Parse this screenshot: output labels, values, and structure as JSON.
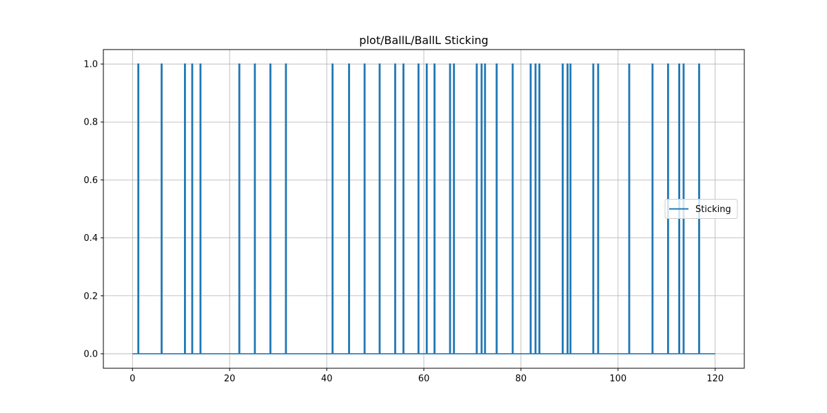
{
  "chart_data": {
    "type": "line",
    "title": "plot/BallL/BallL Sticking",
    "xlabel": "",
    "ylabel": "",
    "xlim": [
      -6,
      126
    ],
    "ylim": [
      -0.05,
      1.05
    ],
    "xticks": [
      0,
      20,
      40,
      60,
      80,
      100,
      120
    ],
    "yticks": [
      0.0,
      0.2,
      0.4,
      0.6,
      0.8,
      1.0
    ],
    "xtick_labels": [
      "0",
      "20",
      "40",
      "60",
      "80",
      "100",
      "120"
    ],
    "ytick_labels": [
      "0.0",
      "0.2",
      "0.4",
      "0.6",
      "0.8",
      "1.0"
    ],
    "grid": true,
    "legend": "center-right",
    "x_range": [
      0,
      120
    ],
    "baseline": 0,
    "series": [
      {
        "name": "Sticking",
        "color": "#1f77b4",
        "spikes_at_x": [
          1.2,
          6.0,
          10.8,
          12.3,
          14.0,
          22.0,
          25.2,
          28.4,
          31.6,
          41.2,
          44.6,
          47.8,
          50.9,
          54.1,
          55.8,
          58.9,
          60.6,
          62.2,
          65.4,
          66.2,
          70.9,
          71.9,
          72.6,
          75.0,
          78.3,
          82.0,
          83.0,
          83.8,
          88.6,
          89.6,
          90.2,
          94.9,
          95.9,
          102.3,
          107.1,
          110.3,
          112.6,
          113.5,
          116.7
        ],
        "spike_value": 1.0
      }
    ]
  }
}
